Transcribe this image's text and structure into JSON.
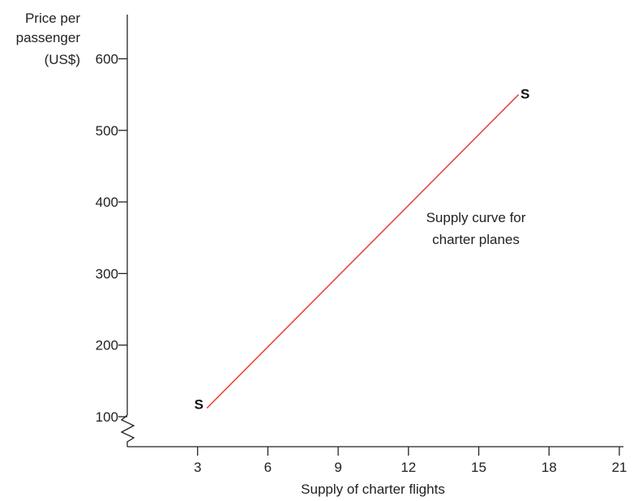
{
  "chart_data": {
    "type": "line",
    "xlabel": "Supply of charter flights",
    "ylabel_lines": [
      "Price per",
      "passenger",
      "(US$)"
    ],
    "x_ticks": [
      "3",
      "6",
      "9",
      "12",
      "15",
      "18",
      "21"
    ],
    "y_ticks": [
      "100",
      "200",
      "300",
      "400",
      "500",
      "600"
    ],
    "xlim": [
      0,
      21
    ],
    "ylim": [
      100,
      660
    ],
    "axis_break": "zigzag on y-axis near origin",
    "series": [
      {
        "x": [
          3.4,
          16.7
        ],
        "y": [
          112,
          550
        ],
        "color": "#e8473b"
      }
    ],
    "line_end_labels": [
      "S",
      "S"
    ],
    "annotation_lines": [
      "Supply curve for",
      "charter planes"
    ],
    "grid": false,
    "axis_color": "#222222"
  }
}
